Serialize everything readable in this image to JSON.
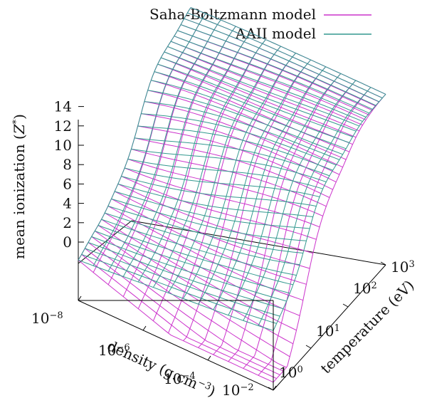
{
  "chart_data": {
    "type": "surface",
    "legend": {
      "placement": "top-right",
      "entries": [
        {
          "label": "Saha-Boltzmann model",
          "color": "#cc33cc"
        },
        {
          "label": "AAII model",
          "color": "#33998f"
        }
      ]
    },
    "z_axis": {
      "label": "mean ionization (Z*)",
      "label_main": "mean ionization (",
      "label_var": "Z",
      "label_sup": "*",
      "label_end": ")",
      "ticks": [
        "0",
        "2",
        "4",
        "6",
        "8",
        "10",
        "12",
        "14"
      ],
      "range": [
        0,
        14
      ]
    },
    "density_axis": {
      "label": "density (g.cm⁻³)",
      "label_main": "density (g.cm",
      "label_sup": "−3",
      "label_end": ")",
      "scale": "log",
      "range": [
        1e-08,
        0.01
      ],
      "ticks": [
        {
          "base": "10",
          "exp": "−8"
        },
        {
          "base": "10",
          "exp": "−6"
        },
        {
          "base": "10",
          "exp": "−4"
        },
        {
          "base": "10",
          "exp": "−2"
        }
      ]
    },
    "temperature_axis": {
      "label": "temperature (eV)",
      "scale": "log",
      "range": [
        1,
        1000
      ],
      "ticks": [
        {
          "base": "10",
          "exp": "0"
        },
        {
          "base": "10",
          "exp": "1"
        },
        {
          "base": "10",
          "exp": "2"
        },
        {
          "base": "10",
          "exp": "3"
        }
      ]
    },
    "series": [
      {
        "name": "Saha-Boltzmann model",
        "color": "#cc33cc"
      },
      {
        "name": "AAII model",
        "color": "#33998f"
      }
    ],
    "grid": false
  }
}
